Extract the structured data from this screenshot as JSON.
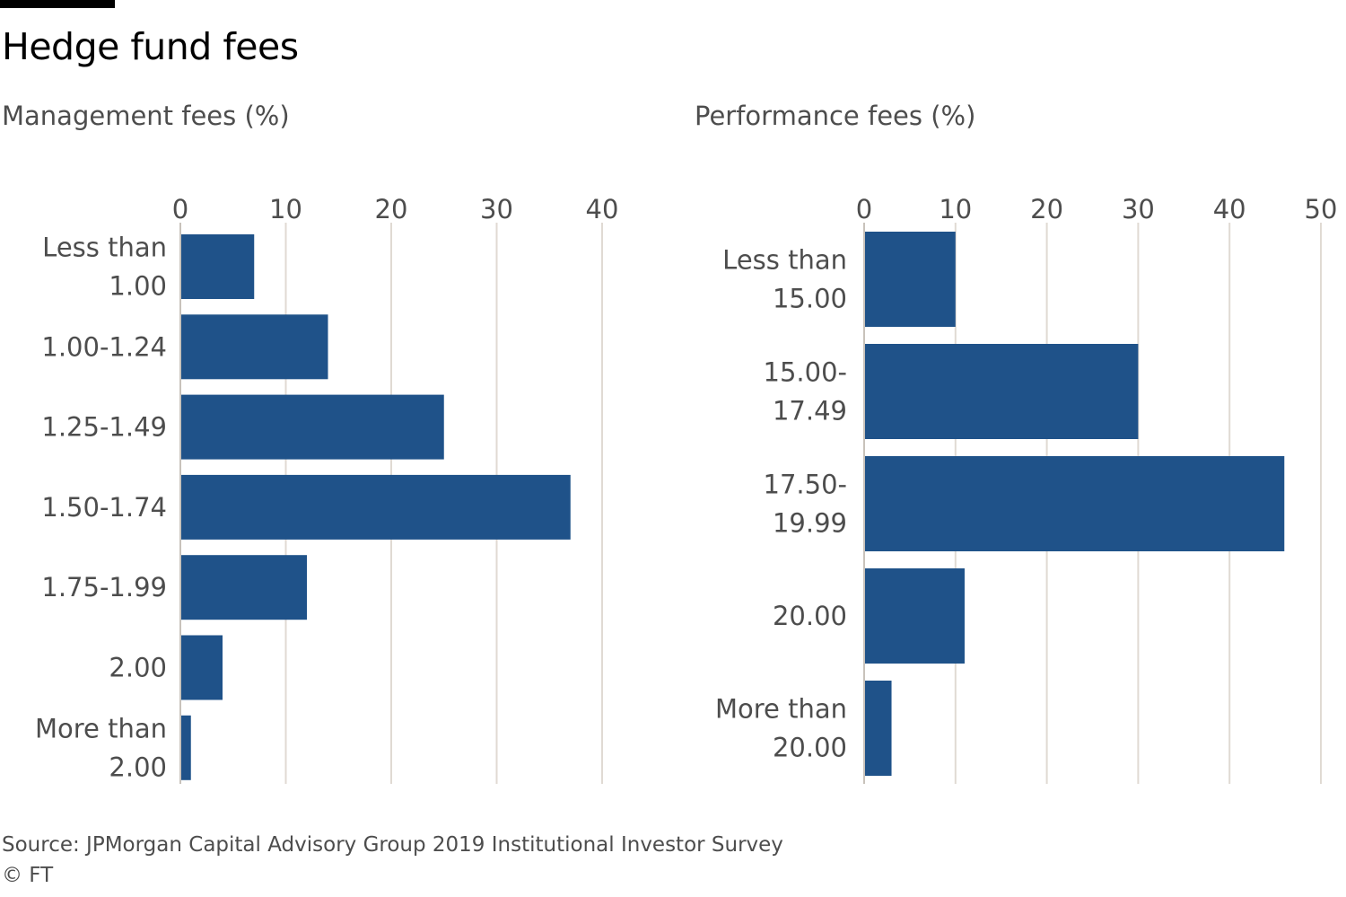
{
  "title": "Hedge fund fees",
  "source": "Source: JPMorgan Capital Advisory Group 2019 Institutional Investor Survey",
  "copyright": "© FT",
  "colors": {
    "bar": "#1f5289",
    "grid": "#e0dad3",
    "text": "#4d4d4d"
  },
  "chart_data": [
    {
      "type": "bar",
      "orientation": "horizontal",
      "title": "Management fees (%)",
      "categories": [
        "Less than 1.00",
        "1.00-1.24",
        "1.25-1.49",
        "1.50-1.74",
        "1.75-1.99",
        "2.00",
        "More than 2.00"
      ],
      "values": [
        7,
        14,
        25,
        37,
        12,
        4,
        1
      ],
      "xlim": [
        0,
        40
      ],
      "ticks": [
        0,
        10,
        20,
        30,
        40
      ],
      "tick_position": "top",
      "grid": true
    },
    {
      "type": "bar",
      "orientation": "horizontal",
      "title": "Performance fees (%)",
      "categories": [
        "Less than 15.00",
        "15.00-17.49",
        "17.50-19.99",
        "20.00",
        "More than 20.00"
      ],
      "values": [
        10,
        30,
        46,
        11,
        3
      ],
      "xlim": [
        0,
        50
      ],
      "ticks": [
        0,
        10,
        20,
        30,
        40,
        50
      ],
      "tick_position": "top",
      "grid": true
    }
  ]
}
